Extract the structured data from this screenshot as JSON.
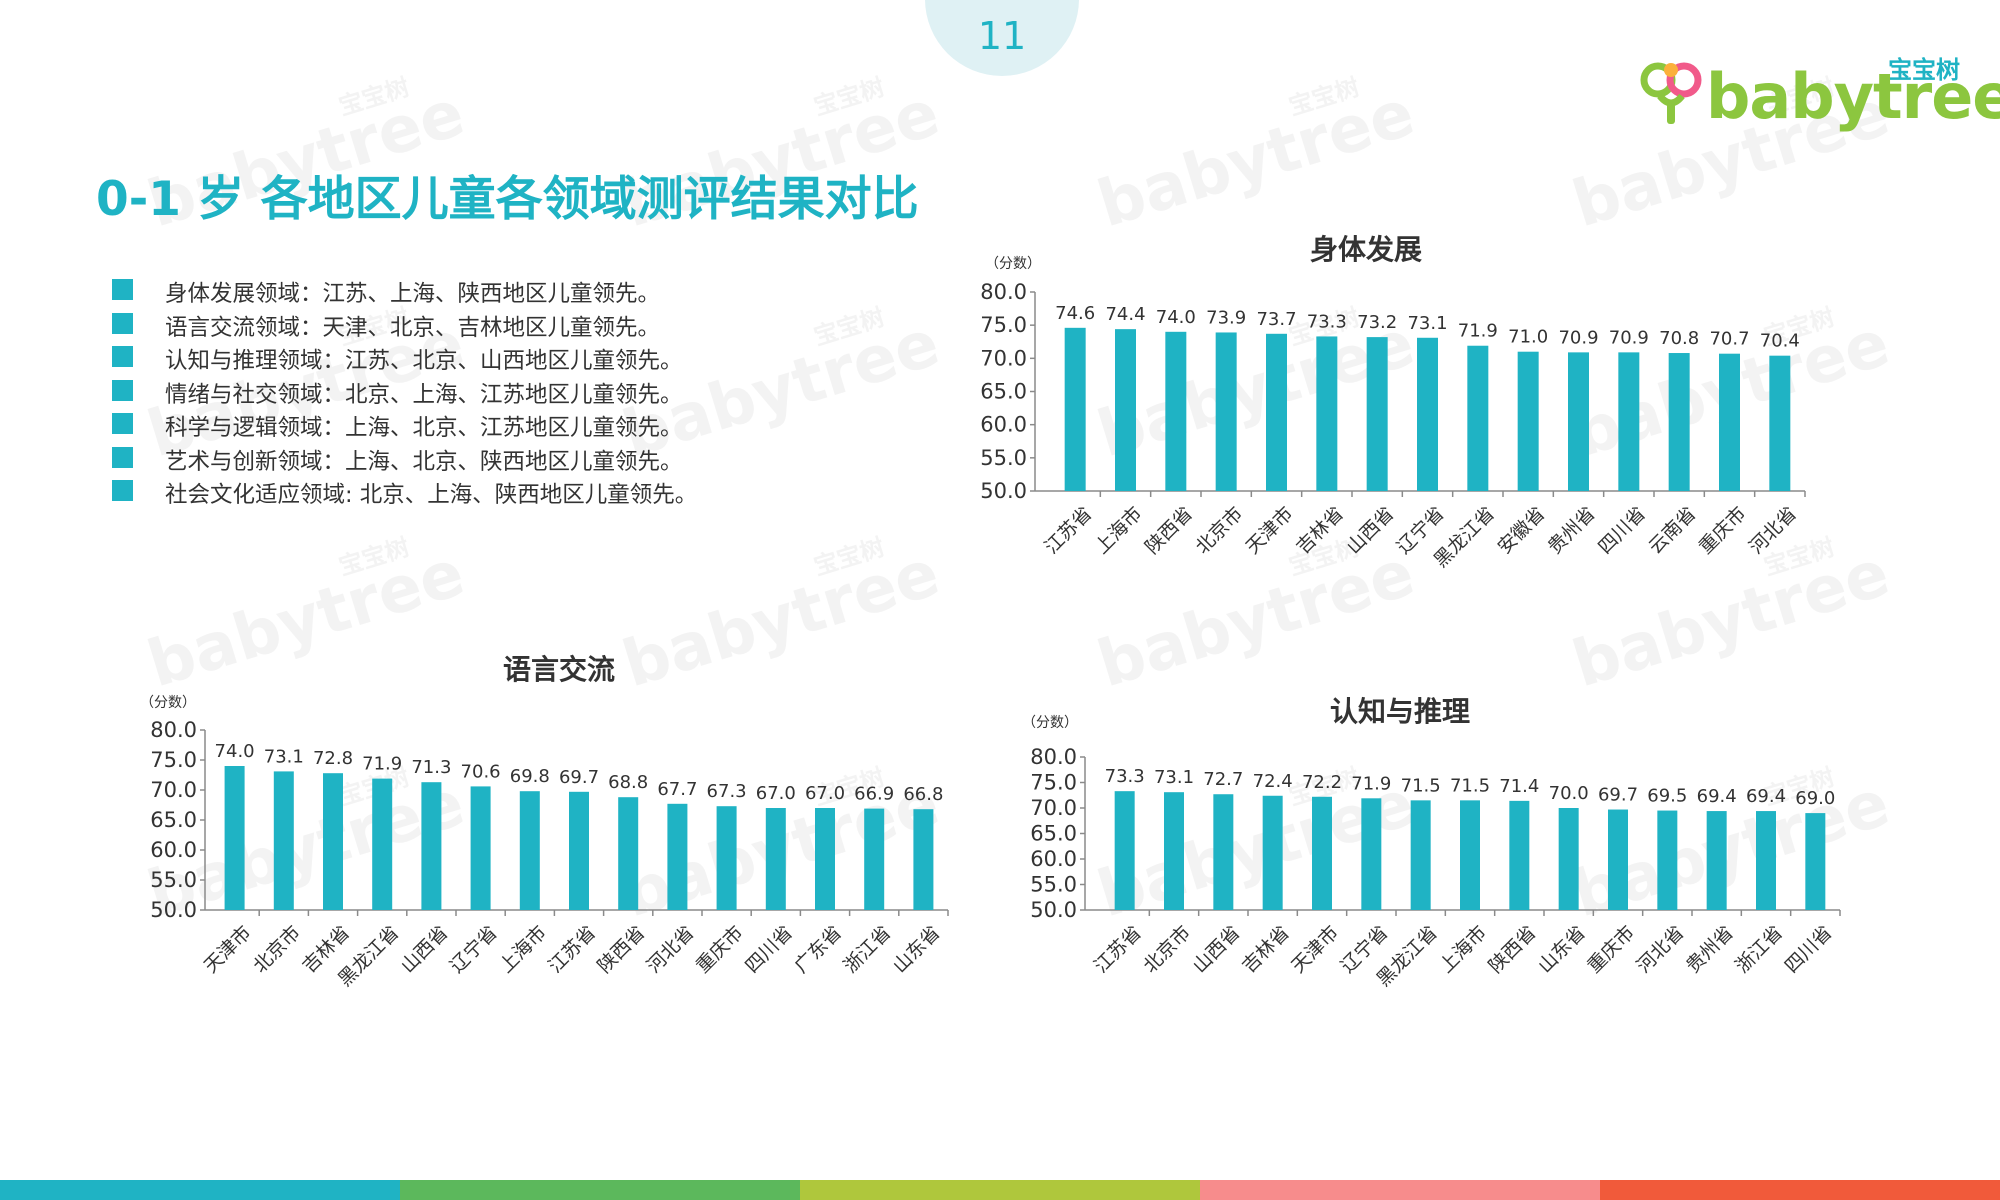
{
  "page": {
    "number": "11"
  },
  "logo": {
    "cn": "宝宝树",
    "en": "babytree"
  },
  "title": "0-1 岁 各地区儿童各领域测评结果对比",
  "bullets": [
    "身体发展领域：江苏、上海、陕西地区儿童领先。",
    "语言交流领域：天津、北京、吉林地区儿童领先。",
    "认知与推理领域：江苏、北京、山西地区儿童领先。",
    "情绪与社交领域：北京、上海、江苏地区儿童领先。",
    "科学与逻辑领域：上海、北京、江苏地区儿童领先。",
    "艺术与创新领域：上海、北京、陕西地区儿童领先。",
    "社会文化适应领域: 北京、上海、陕西地区儿童领先。"
  ],
  "colors": {
    "accent": "#1fb3c4",
    "bar": "#1fb3c4",
    "footer": [
      "#1fb3c4",
      "#5cb85c",
      "#afc73c",
      "#f78c8c",
      "#f15a3a"
    ]
  },
  "chart_data": [
    {
      "type": "bar",
      "title": "身体发展",
      "unit_label": "（分数）",
      "categories": [
        "江苏省",
        "上海市",
        "陕西省",
        "北京市",
        "天津市",
        "吉林省",
        "山西省",
        "辽宁省",
        "黑龙江省",
        "安徽省",
        "贵州省",
        "四川省",
        "云南省",
        "重庆市",
        "河北省"
      ],
      "values": [
        74.6,
        74.4,
        74.0,
        73.9,
        73.7,
        73.3,
        73.2,
        73.1,
        71.9,
        71.0,
        70.9,
        70.9,
        70.8,
        70.7,
        70.4
      ],
      "ylim": [
        50,
        80
      ],
      "yticks": [
        "50.0",
        "55.0",
        "60.0",
        "65.0",
        "70.0",
        "75.0",
        "80.0"
      ],
      "data_labels": true,
      "grid": false
    },
    {
      "type": "bar",
      "title": "语言交流",
      "unit_label": "（分数）",
      "categories": [
        "天津市",
        "北京市",
        "吉林省",
        "黑龙江省",
        "山西省",
        "辽宁省",
        "上海市",
        "江苏省",
        "陕西省",
        "河北省",
        "重庆市",
        "四川省",
        "广东省",
        "浙江省",
        "山东省"
      ],
      "values": [
        74.0,
        73.1,
        72.8,
        71.9,
        71.3,
        70.6,
        69.8,
        69.7,
        68.8,
        67.7,
        67.3,
        67.0,
        67.0,
        66.9,
        66.8
      ],
      "ylim": [
        50,
        80
      ],
      "yticks": [
        "50.0",
        "55.0",
        "60.0",
        "65.0",
        "70.0",
        "75.0",
        "80.0"
      ],
      "data_labels": true,
      "grid": false
    },
    {
      "type": "bar",
      "title": "认知与推理",
      "unit_label": "（分数）",
      "categories": [
        "江苏省",
        "北京市",
        "山西省",
        "吉林省",
        "天津市",
        "辽宁省",
        "黑龙江省",
        "上海市",
        "陕西省",
        "山东省",
        "重庆市",
        "河北省",
        "贵州省",
        "浙江省",
        "四川省"
      ],
      "values": [
        73.3,
        73.1,
        72.7,
        72.4,
        72.2,
        71.9,
        71.5,
        71.5,
        71.4,
        70.0,
        69.7,
        69.5,
        69.4,
        69.4,
        69.0
      ],
      "ylim": [
        50,
        80
      ],
      "yticks": [
        "50.0",
        "55.0",
        "60.0",
        "65.0",
        "70.0",
        "75.0",
        "80.0"
      ],
      "data_labels": true,
      "grid": false
    }
  ]
}
